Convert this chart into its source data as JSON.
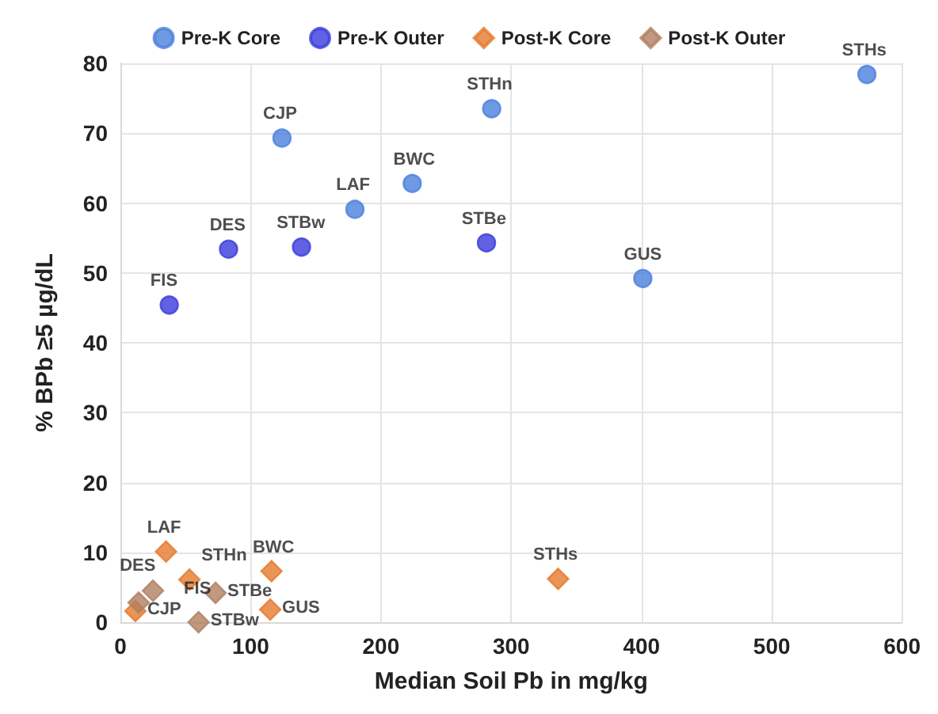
{
  "chart_data": {
    "type": "scatter",
    "xlabel": "Median Soil Pb in mg/kg",
    "ylabel": "% BPb ≥5 µg/dL",
    "xlim": [
      0,
      600
    ],
    "xticks": [
      0,
      100,
      200,
      300,
      400,
      500,
      600
    ],
    "ylim": [
      0,
      80
    ],
    "yticks": [
      0,
      10,
      20,
      30,
      40,
      50,
      60,
      70,
      80
    ],
    "grid": true,
    "legend": "top",
    "series": [
      {
        "name": "Pre-K Core",
        "color": "#4a7fdc",
        "marker": "circle",
        "x": [
          124,
          285,
          180,
          224,
          401,
          573
        ],
        "values": [
          69.3,
          73.5,
          59.1,
          62.8,
          49.2,
          78.4
        ]
      },
      {
        "name": "Pre-K Outer",
        "color": "#3a3adc",
        "marker": "circle",
        "x": [
          37.5,
          83,
          139,
          281
        ],
        "values": [
          45.4,
          53.4,
          53.7,
          54.3
        ]
      },
      {
        "name": "Post-K Core",
        "color": "#e57a2e",
        "marker": "diamond",
        "x": [
          35,
          53,
          116,
          115,
          336,
          11.5
        ],
        "values": [
          10.1,
          6.1,
          7.3,
          1.8,
          6.2,
          1.6
        ]
      },
      {
        "name": "Post-K Outer",
        "color": "#b08060",
        "marker": "diamond",
        "x": [
          14,
          25,
          73,
          60
        ],
        "values": [
          2.8,
          4.5,
          4.2,
          0
        ]
      }
    ],
    "annotations": [
      {
        "text": "CJP",
        "x": 124,
        "y": 69.3
      },
      {
        "text": "STHn",
        "x": 285,
        "y": 73.5
      },
      {
        "text": "LAF",
        "x": 180,
        "y": 59.1
      },
      {
        "text": "BWC",
        "x": 224,
        "y": 62.8
      },
      {
        "text": "GUS",
        "x": 401,
        "y": 49.2
      },
      {
        "text": "STHs",
        "x": 573,
        "y": 78.4
      },
      {
        "text": "FIS",
        "x": 37.5,
        "y": 45.4
      },
      {
        "text": "DES",
        "x": 83,
        "y": 53.4
      },
      {
        "text": "STBw",
        "x": 139,
        "y": 53.7
      },
      {
        "text": "STBe",
        "x": 281,
        "y": 54.3
      },
      {
        "text": "LAF",
        "x": 35,
        "y": 10.1
      },
      {
        "text": "STHn",
        "x": 53,
        "y": 6.1
      },
      {
        "text": "BWC",
        "x": 116,
        "y": 7.3
      },
      {
        "text": "GUS",
        "x": 115,
        "y": 1.8
      },
      {
        "text": "STHs",
        "x": 336,
        "y": 6.2
      },
      {
        "text": "CJP",
        "x": 11.5,
        "y": 1.6
      },
      {
        "text": "DES",
        "x": 14,
        "y": 2.8
      },
      {
        "text": "FIS",
        "x": 25,
        "y": 4.5
      },
      {
        "text": "STBe",
        "x": 73,
        "y": 4.2
      },
      {
        "text": "STBw",
        "x": 60,
        "y": 0
      }
    ]
  }
}
